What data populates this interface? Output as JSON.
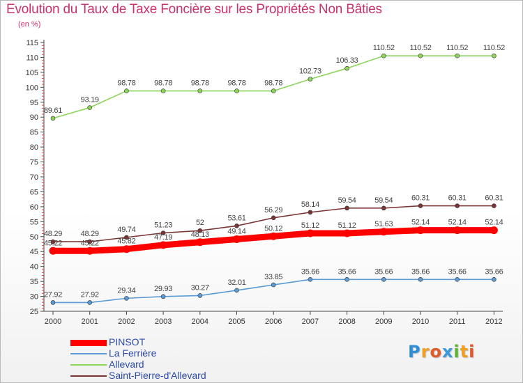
{
  "title": "Evolution du Taux de Taxe Foncière sur les Propriétés Non Bâties",
  "unit": "(en %)",
  "logo": {
    "text": "Proxiti",
    "letters": [
      "P",
      "r",
      "o",
      "x",
      "i",
      "t",
      "i"
    ],
    "colors": [
      "#2f8fd6",
      "#f0a020",
      "#e05a2a",
      "#3a9ad9",
      "#5ab82e",
      "#f0a020",
      "#e05a2a"
    ]
  },
  "chart_data": {
    "type": "line",
    "title": "Evolution du Taux de Taxe Foncière sur les Propriétés Non Bâties",
    "ylabel": "(en %)",
    "xlabel": "",
    "x": [
      "2000",
      "2001",
      "2002",
      "2003",
      "2004",
      "2005",
      "2006",
      "2007",
      "2008",
      "2009",
      "2010",
      "2011",
      "2012"
    ],
    "ylim": [
      25,
      115
    ],
    "yticks": [
      25,
      30,
      35,
      40,
      45,
      50,
      55,
      60,
      65,
      70,
      75,
      80,
      85,
      90,
      95,
      100,
      105,
      110,
      115
    ],
    "grid": false,
    "legend_position": "bottom-left",
    "series": [
      {
        "name": "PINSOT",
        "color": "#ff0000",
        "values": [
          45.22,
          45.22,
          45.82,
          47.19,
          48.13,
          49.14,
          50.12,
          51.12,
          51.12,
          51.63,
          52.14,
          52.14,
          52.14
        ],
        "labels": [
          "",
          "",
          "45.82",
          "47.19",
          "48.13",
          "49.14",
          "50.12",
          "51.12",
          "51.12",
          "51.63",
          "52.14",
          "52.14",
          "52.14"
        ]
      },
      {
        "name": "La Ferrière",
        "color": "#5b9bd5",
        "values": [
          27.92,
          27.92,
          29.34,
          29.93,
          30.27,
          32.01,
          33.85,
          35.66,
          35.66,
          35.66,
          35.66,
          35.66,
          35.66
        ],
        "labels": [
          "27.92",
          "27.92",
          "29.34",
          "29.93",
          "30.27",
          "32.01",
          "33.85",
          "35.66",
          "35.66",
          "35.66",
          "35.66",
          "35.66",
          "35.66"
        ]
      },
      {
        "name": "Allevard",
        "color": "#8dd45a",
        "values": [
          89.61,
          93.19,
          98.78,
          98.78,
          98.78,
          98.78,
          98.78,
          102.73,
          106.33,
          110.52,
          110.52,
          110.52,
          110.52
        ],
        "labels": [
          "89.61",
          "93.19",
          "98.78",
          "98.78",
          "98.78",
          "98.78",
          "98.78",
          "102.73",
          "106.33",
          "110.52",
          "110.52",
          "110.52",
          "110.52"
        ]
      },
      {
        "name": "Saint-Pierre-d'Allevard",
        "color": "#7a3535",
        "values": [
          48.29,
          48.29,
          49.74,
          51.23,
          52,
          53.61,
          56.29,
          58.14,
          59.54,
          59.54,
          60.31,
          60.31,
          60.31
        ],
        "labels": [
          "48.29",
          "48.29",
          "49.74",
          "51.23",
          "52",
          "53.61",
          "56.29",
          "58.14",
          "59.54",
          "59.54",
          "60.31",
          "60.31",
          "60.31"
        ]
      }
    ],
    "pinsot_overlap_labels": [
      "45.22",
      "45.22"
    ]
  }
}
